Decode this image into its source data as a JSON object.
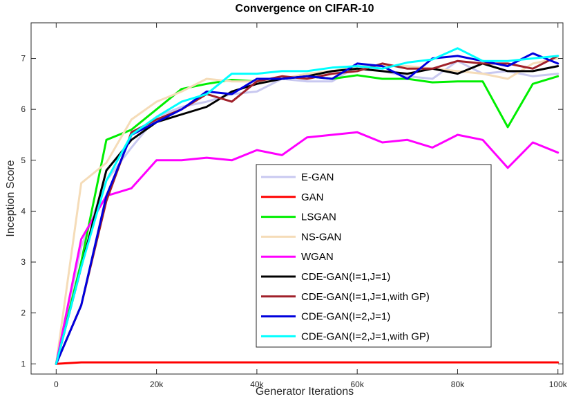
{
  "chart_data": {
    "type": "line",
    "title": "Convergence on CIFAR-10",
    "xlabel": "Generator Iterations",
    "ylabel": "Inception Score",
    "xlim": [
      -5000,
      101000
    ],
    "ylim": [
      0.8,
      7.7
    ],
    "xticks": [
      0,
      20000,
      40000,
      60000,
      80000,
      100000
    ],
    "xtick_labels": [
      "0",
      "20k",
      "40k",
      "60k",
      "80k",
      "100k"
    ],
    "yticks": [
      1,
      2,
      3,
      4,
      5,
      6,
      7
    ],
    "ytick_labels": [
      "1",
      "2",
      "3",
      "4",
      "5",
      "6",
      "7"
    ],
    "legend_position": "bottom-center",
    "x": [
      0,
      5000,
      10000,
      15000,
      20000,
      25000,
      30000,
      35000,
      40000,
      45000,
      50000,
      55000,
      60000,
      65000,
      70000,
      75000,
      80000,
      85000,
      90000,
      95000,
      100000
    ],
    "series": [
      {
        "name": "E-GAN",
        "color": "#c8c8f0",
        "values": [
          1.0,
          3.3,
          4.6,
          5.25,
          5.85,
          6.05,
          6.15,
          6.3,
          6.35,
          6.6,
          6.55,
          6.55,
          6.85,
          6.75,
          6.65,
          6.6,
          6.95,
          6.7,
          6.75,
          6.65,
          6.7
        ]
      },
      {
        "name": "GAN",
        "color": "#ff0000",
        "values": [
          1.0,
          1.03,
          1.03,
          1.03,
          1.03,
          1.03,
          1.03,
          1.03,
          1.03,
          1.03,
          1.03,
          1.03,
          1.03,
          1.03,
          1.03,
          1.03,
          1.03,
          1.03,
          1.03,
          1.03,
          1.03
        ]
      },
      {
        "name": "LSGAN",
        "color": "#00ee00",
        "values": [
          1.0,
          3.0,
          5.4,
          5.6,
          6.0,
          6.4,
          6.5,
          6.58,
          6.55,
          6.6,
          6.65,
          6.6,
          6.67,
          6.6,
          6.6,
          6.53,
          6.55,
          6.55,
          5.65,
          6.5,
          6.65
        ]
      },
      {
        "name": "NS-GAN",
        "color": "#f5dcb8",
        "values": [
          1.0,
          4.55,
          4.95,
          5.8,
          6.15,
          6.35,
          6.6,
          6.55,
          6.55,
          6.6,
          6.7,
          6.75,
          6.85,
          6.85,
          6.85,
          6.8,
          6.75,
          6.7,
          6.6,
          6.9,
          7.0
        ]
      },
      {
        "name": "WGAN",
        "color": "#ff00ff",
        "values": [
          1.0,
          3.45,
          4.3,
          4.45,
          5.0,
          5.0,
          5.05,
          5.0,
          5.2,
          5.1,
          5.45,
          5.5,
          5.55,
          5.35,
          5.4,
          5.25,
          5.5,
          5.4,
          4.85,
          5.35,
          5.15
        ]
      },
      {
        "name": "CDE-GAN(I=1,J=1)",
        "color": "#000000",
        "values": [
          1.0,
          2.9,
          4.8,
          5.4,
          5.75,
          5.9,
          6.05,
          6.35,
          6.5,
          6.6,
          6.65,
          6.75,
          6.8,
          6.75,
          6.7,
          6.8,
          6.7,
          6.9,
          6.75,
          6.75,
          6.85
        ]
      },
      {
        "name": "CDE-GAN(I=1,J=1,with GP)",
        "color": "#a0202a",
        "values": [
          1.0,
          2.15,
          4.2,
          5.55,
          5.8,
          6.0,
          6.3,
          6.15,
          6.55,
          6.65,
          6.6,
          6.7,
          6.75,
          6.9,
          6.8,
          6.8,
          6.95,
          6.9,
          6.9,
          6.8,
          7.05
        ]
      },
      {
        "name": "CDE-GAN(I=2,J=1)",
        "color": "#0000dd",
        "values": [
          1.0,
          2.15,
          4.3,
          5.5,
          5.75,
          6.0,
          6.35,
          6.3,
          6.6,
          6.6,
          6.65,
          6.6,
          6.9,
          6.85,
          6.6,
          7.0,
          7.05,
          6.95,
          6.85,
          7.1,
          6.9
        ]
      },
      {
        "name": "CDE-GAN(I=2,J=1,with GP)",
        "color": "#00ffff",
        "values": [
          1.0,
          2.9,
          4.6,
          5.5,
          5.85,
          6.15,
          6.3,
          6.7,
          6.7,
          6.75,
          6.75,
          6.82,
          6.85,
          6.8,
          6.92,
          6.98,
          7.2,
          6.95,
          6.95,
          7.0,
          7.05
        ]
      }
    ]
  }
}
